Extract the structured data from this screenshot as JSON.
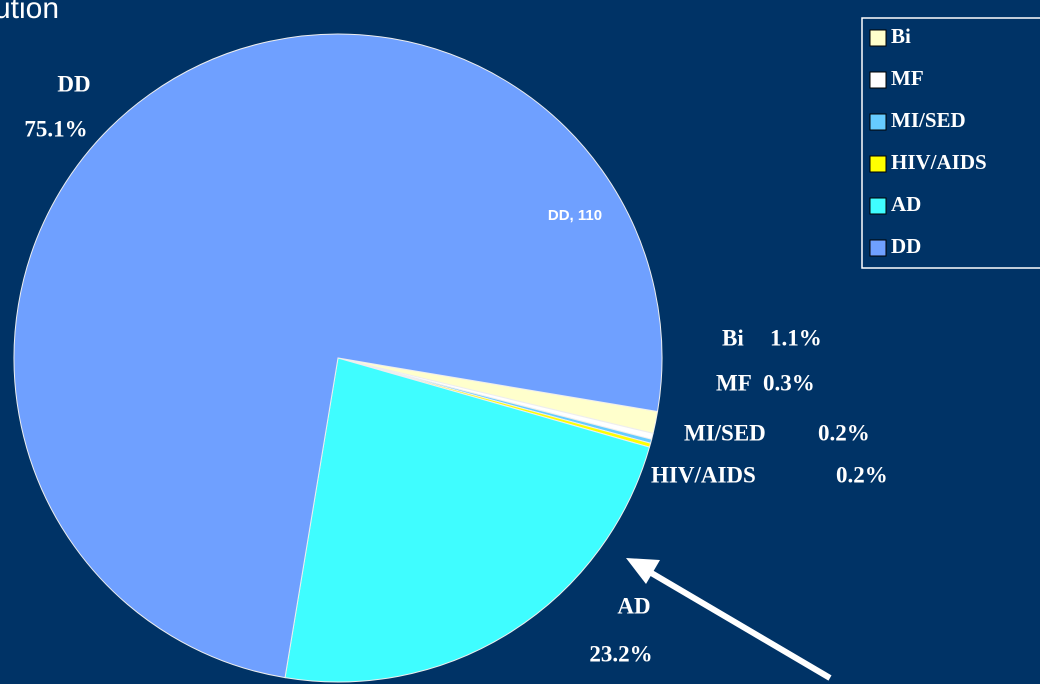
{
  "chart_data": {
    "type": "pie",
    "title": "ution",
    "categories": [
      "Bi",
      "MF",
      "MI/SED",
      "HIV/AIDS",
      "AD",
      "DD"
    ],
    "values": [
      1.1,
      0.3,
      0.2,
      0.2,
      23.2,
      75.1
    ],
    "value_labels": [
      "1.1%",
      "0.3%",
      "0.2%",
      "0.2%",
      "23.2%",
      "75.1%"
    ],
    "colors": [
      "#ffffcc",
      "#ffffff",
      "#66ccff",
      "#ffff00",
      "#3ffdff",
      "#6fa0ff"
    ],
    "annotations": [
      "DD, 110"
    ],
    "legend": "top-right"
  }
}
